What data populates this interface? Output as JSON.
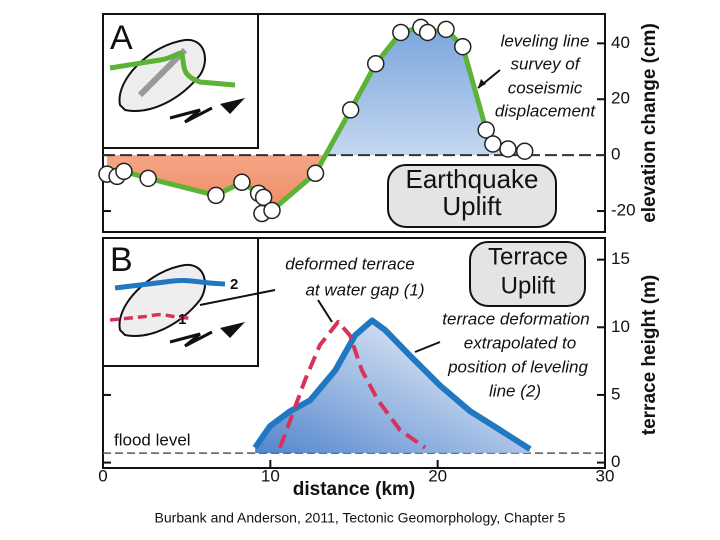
{
  "chart_data": [
    {
      "type": "line",
      "panel_label": "A",
      "x": [
        0.24,
        0.84,
        1.25,
        2.7,
        6.75,
        8.3,
        9.3,
        9.6,
        9.5,
        10.1,
        12.7,
        14.8,
        16.3,
        17.8,
        19.0,
        19.4,
        20.5,
        21.5,
        22.9,
        23.3,
        24.2,
        25.2
      ],
      "values": [
        -6.8,
        -7.6,
        -5.8,
        -8.3,
        -14.4,
        -9.7,
        -13.7,
        -15.1,
        -20.9,
        -19.8,
        -6.5,
        16.2,
        32.7,
        43.9,
        45.7,
        43.9,
        45,
        38.8,
        9.0,
        4.0,
        2.2,
        1.4
      ],
      "color": "#5cb335",
      "xlim": [
        0,
        30
      ],
      "ylim": [
        -27.5,
        50.5
      ],
      "yticks": [
        -20,
        0,
        20,
        40
      ],
      "y_label": "elevation change (cm)",
      "annotation": [
        "leveling line",
        "survey of",
        "coseismic",
        "displacement"
      ],
      "box_label": [
        "Earthquake",
        "Uplift"
      ]
    },
    {
      "type": "line",
      "panel_label": "B",
      "series": [
        {
          "name": "2",
          "color": "#1f78c1",
          "dashed": false,
          "x": [
            9.09,
            9.98,
            11.18,
            12.37,
            13.87,
            15.06,
            16.08,
            16.86,
            18.35,
            20.14,
            21.94,
            23.73,
            25.52
          ],
          "values": [
            1.1,
            2.7,
            3.8,
            4.6,
            6.8,
            9.4,
            10.5,
            9.8,
            7.9,
            5.7,
            3.8,
            2.4,
            1.0
          ]
        },
        {
          "name": "1",
          "color": "#d9325a",
          "dashed": true,
          "x": [
            10.58,
            11.18,
            12.07,
            12.97,
            14.05,
            14.76,
            15.48,
            16.44,
            17.75,
            19.25
          ],
          "values": [
            1.1,
            3.1,
            6.1,
            8.7,
            10.4,
            9.4,
            6.8,
            4.6,
            2.4,
            1.1
          ]
        }
      ],
      "xlim": [
        0,
        30
      ],
      "ylim": [
        -0.4,
        16.6
      ],
      "xticks": [
        0,
        10,
        20,
        30
      ],
      "yticks": [
        0,
        5,
        10,
        15
      ],
      "x_label": "distance (km)",
      "y_label": "terrace height (m)",
      "flood_level": 0.7,
      "flood_label": "flood level",
      "annotation_1": [
        "deformed terrace",
        "at water gap (1)"
      ],
      "annotation_2": [
        "terrace deformation",
        "extrapolated to",
        "position of leveling",
        "line (2)"
      ],
      "box_label": [
        "Terrace",
        "Uplift"
      ]
    }
  ],
  "caption": "Burbank and Anderson, 2011, Tectonic Geomorphology, Chapter 5"
}
